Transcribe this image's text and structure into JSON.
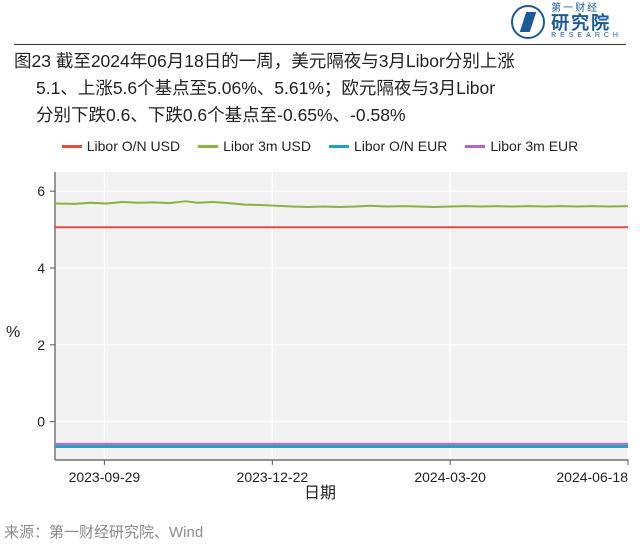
{
  "logo": {
    "brand_small": "第一财经",
    "brand_big": "研究院",
    "brand_en": "RESEARCH"
  },
  "title": {
    "line1": "图23  截至2024年06月18日的一周，美元隔夜与3月Libor分别上涨",
    "line2": "5.1、上涨5.6个基点至5.06%、5.61%；欧元隔夜与3月Libor",
    "line3": "分别下跌0.6、下跌0.6个基点至-0.65%、-0.58%"
  },
  "legend": {
    "items": [
      {
        "label": "Libor O/N USD",
        "color": "#e84c3d"
      },
      {
        "label": "Libor 3m USD",
        "color": "#8cb340"
      },
      {
        "label": "Libor O/N EUR",
        "color": "#1aa5c4"
      },
      {
        "label": "Libor 3m EUR",
        "color": "#b765c8"
      }
    ]
  },
  "chart": {
    "type": "line",
    "background_color": "#f2f2f2",
    "panel_border_color": "#555555",
    "grid_color": "#ffffff",
    "ylabel": "%",
    "xlabel": "日期",
    "ylim": [
      -1,
      6.5
    ],
    "yticks": [
      0,
      2,
      4,
      6
    ],
    "xrange": [
      0,
      290
    ],
    "xticks": [
      {
        "pos": 25,
        "label": "2023-09-29"
      },
      {
        "pos": 110,
        "label": "2023-12-22"
      },
      {
        "pos": 200,
        "label": "2024-03-20"
      },
      {
        "pos": 290,
        "label": "2024-06-18"
      }
    ],
    "series": [
      {
        "name": "Libor O/N USD",
        "color": "#e84c3d",
        "width": 2,
        "points": [
          [
            0,
            5.06
          ],
          [
            290,
            5.06
          ]
        ]
      },
      {
        "name": "Libor 3m USD",
        "color": "#8cb340",
        "width": 2,
        "points": [
          [
            0,
            5.68
          ],
          [
            10,
            5.67
          ],
          [
            18,
            5.7
          ],
          [
            26,
            5.68
          ],
          [
            34,
            5.72
          ],
          [
            42,
            5.7
          ],
          [
            50,
            5.71
          ],
          [
            58,
            5.69
          ],
          [
            66,
            5.74
          ],
          [
            72,
            5.7
          ],
          [
            80,
            5.72
          ],
          [
            88,
            5.69
          ],
          [
            96,
            5.65
          ],
          [
            104,
            5.64
          ],
          [
            112,
            5.62
          ],
          [
            120,
            5.6
          ],
          [
            128,
            5.59
          ],
          [
            136,
            5.6
          ],
          [
            144,
            5.59
          ],
          [
            152,
            5.6
          ],
          [
            160,
            5.62
          ],
          [
            168,
            5.6
          ],
          [
            176,
            5.61
          ],
          [
            184,
            5.6
          ],
          [
            192,
            5.59
          ],
          [
            200,
            5.6
          ],
          [
            208,
            5.61
          ],
          [
            216,
            5.6
          ],
          [
            224,
            5.61
          ],
          [
            232,
            5.6
          ],
          [
            240,
            5.61
          ],
          [
            248,
            5.6
          ],
          [
            256,
            5.61
          ],
          [
            264,
            5.6
          ],
          [
            272,
            5.61
          ],
          [
            280,
            5.6
          ],
          [
            290,
            5.61
          ]
        ]
      },
      {
        "name": "Libor O/N EUR",
        "color": "#1aa5c4",
        "width": 3,
        "points": [
          [
            0,
            -0.65
          ],
          [
            290,
            -0.65
          ]
        ]
      },
      {
        "name": "Libor 3m EUR",
        "color": "#b765c8",
        "width": 2,
        "points": [
          [
            0,
            -0.58
          ],
          [
            290,
            -0.58
          ]
        ]
      }
    ],
    "axis_fontsize": 14,
    "label_fontsize": 16
  },
  "source": "来源：第一财经研究院、Wind"
}
